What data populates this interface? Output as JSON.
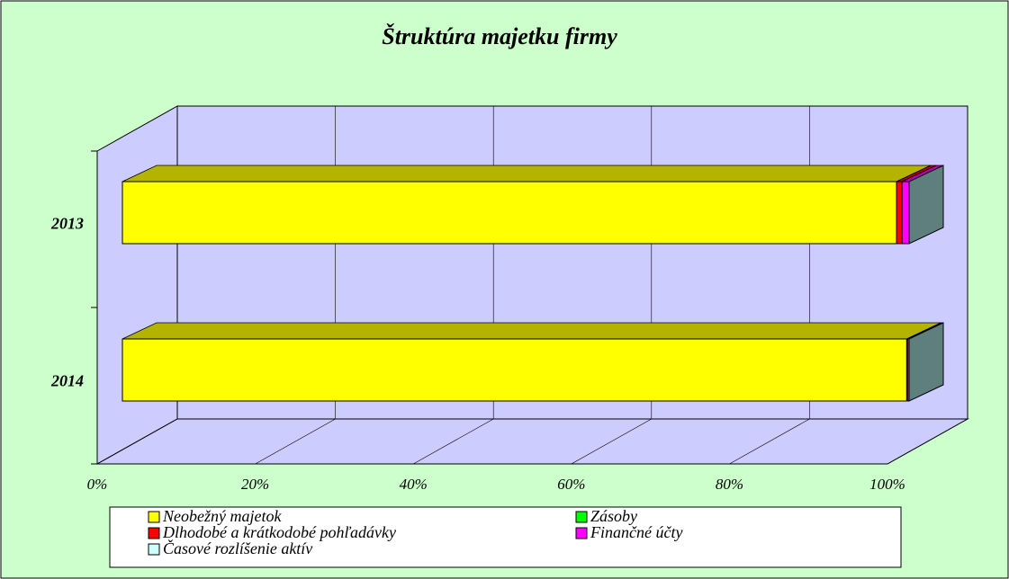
{
  "chart_data": {
    "type": "bar",
    "orientation": "horizontal",
    "stacked": true,
    "percent": true,
    "title": "Štruktúra majetku firmy",
    "categories": [
      "2013",
      "2014"
    ],
    "series": [
      {
        "name": "Neobežný majetok",
        "color": "#ffff00",
        "values": [
          98.4,
          99.7
        ]
      },
      {
        "name": "Zásoby",
        "color": "#00ff00",
        "values": [
          0,
          0
        ]
      },
      {
        "name": "Dlhodobé a krátkodobé pohľadávky",
        "color": "#ff0000",
        "values": [
          0.7,
          0.1
        ]
      },
      {
        "name": "Finančné účty",
        "color": "#ff00ff",
        "values": [
          0.9,
          0.2
        ]
      },
      {
        "name": "Časové rozlíšenie aktív",
        "color": "#ccffff",
        "values": [
          0,
          0
        ]
      }
    ],
    "xlim": [
      0,
      100
    ],
    "xticks": [
      {
        "value": 0,
        "label": "0%"
      },
      {
        "value": 20,
        "label": "20%"
      },
      {
        "value": 40,
        "label": "40%"
      },
      {
        "value": 60,
        "label": "60%"
      },
      {
        "value": 80,
        "label": "80%"
      },
      {
        "value": 100,
        "label": "100%"
      }
    ],
    "grid": true,
    "legend": "bottom"
  }
}
